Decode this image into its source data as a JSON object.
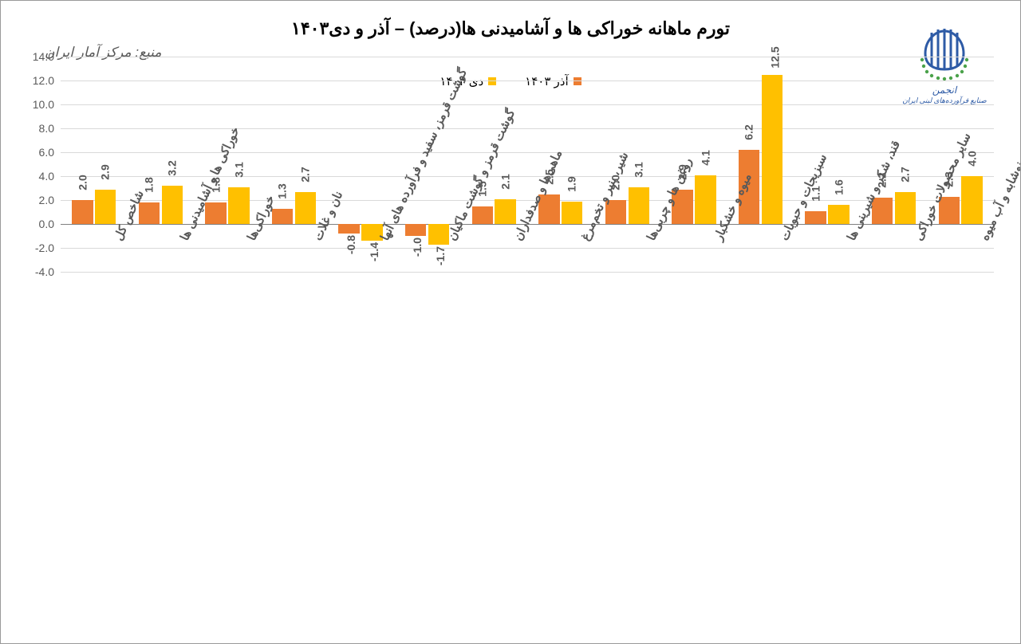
{
  "chart": {
    "type": "bar",
    "title": "تورم ماهانه خوراکی ها و آشامیدنی ها(درصد) – آذر و دی۱۴۰۳",
    "title_fontsize": 22,
    "title_color": "#000000",
    "source_label": "منبع: مرکز آمار ایران",
    "source_fontsize": 17,
    "source_color": "#595959",
    "background_color": "#ffffff",
    "border_color": "#9a9a9a",
    "grid_color": "#d9d9d9",
    "axis_line_color": "#808080",
    "categories": [
      "شاخص کل",
      "خوراکی ها و آشامیدنی ها",
      "خوراکی‌ها",
      "نان و غلات",
      "گوشت قرمز، سفید و فرآورده های آنها",
      "گوشت قرمز و گوشت ماکیان",
      "ماهی‌ها و صدفداران",
      "شیر، پنیر و تخم‌مرغ",
      "روغن ها و چربی‌ها",
      "میوه و خشکبار",
      "سبزیجات و حبوبات",
      "قند، شکر و شیرینی ها",
      "سایر محصولات خوراکی",
      "چای، قهوه، کاکائو، نوشابه و آب میوه"
    ],
    "series": [
      {
        "name": "آذر ۱۴۰۳",
        "color": "#ed7d31",
        "values": [
          2.0,
          1.8,
          1.8,
          1.3,
          -0.8,
          -1.0,
          1.5,
          2.5,
          2.0,
          2.9,
          6.2,
          1.1,
          2.2,
          2.3
        ]
      },
      {
        "name": "دی ۱۴۰۳",
        "color": "#ffc000",
        "values": [
          2.9,
          3.2,
          3.1,
          2.7,
          -1.4,
          -1.7,
          2.1,
          1.9,
          3.1,
          4.1,
          12.5,
          1.6,
          2.7,
          4.0
        ]
      }
    ],
    "y_axis": {
      "min": -4.0,
      "max": 14.0,
      "step": 2.0
    },
    "label_fontsize": 14,
    "label_color": "#595959",
    "xlabel_fontsize": 15,
    "logo": {
      "main_color": "#2e5ba6",
      "accent_color": "#4aa24a"
    }
  }
}
